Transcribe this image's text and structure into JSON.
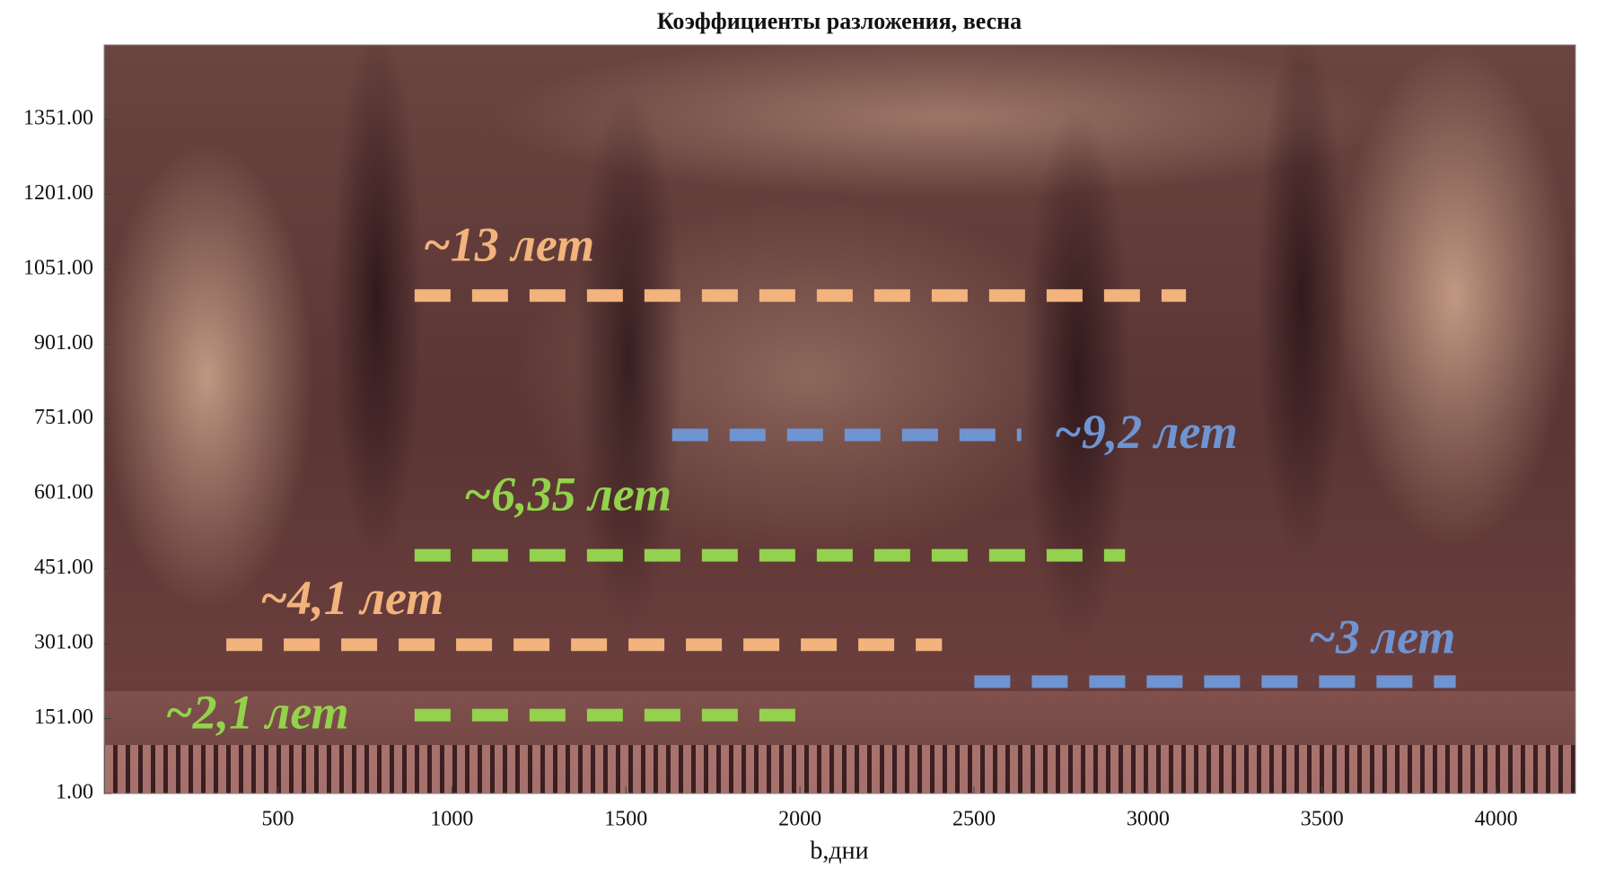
{
  "chart_data": {
    "type": "scalogram",
    "title": "Коэффициенты разложения, весна",
    "xlabel": "b,дни",
    "xlim": [
      1,
      4228
    ],
    "xticks": [
      500,
      1000,
      1500,
      2000,
      2500,
      3000,
      3500,
      4000
    ],
    "ylim": [
      1,
      1500
    ],
    "yticks": [
      {
        "value": 1,
        "label": "1.00"
      },
      {
        "value": 151,
        "label": "151.00"
      },
      {
        "value": 301,
        "label": "301.00"
      },
      {
        "value": 451,
        "label": "451.00"
      },
      {
        "value": 601,
        "label": "601.00"
      },
      {
        "value": 751,
        "label": "751.00"
      },
      {
        "value": 901,
        "label": "901.00"
      },
      {
        "value": 1051,
        "label": "1051.00"
      },
      {
        "value": 1201,
        "label": "1201.00"
      },
      {
        "value": 1351,
        "label": "1351.00"
      }
    ],
    "annotations": [
      {
        "text": "~13 лет",
        "color": "#f2b37c",
        "y": 998,
        "x": [
          893,
          3109
        ]
      },
      {
        "text": "~9,2 лет",
        "color": "#6f94d2",
        "y": 719,
        "x": [
          1633,
          2636
        ]
      },
      {
        "text": "~6,35 лет",
        "color": "#93d24c",
        "y": 478,
        "x": [
          893,
          2934
        ]
      },
      {
        "text": "~4,1 лет",
        "color": "#f2b37c",
        "y": 299,
        "x": [
          352,
          2408
        ]
      },
      {
        "text": "~3 лет",
        "color": "#6f94d2",
        "y": 225,
        "x": [
          2501,
          3884
        ]
      },
      {
        "text": "~2,1 лет",
        "color": "#93d24c",
        "y": 158,
        "x": [
          893,
          1992
        ]
      }
    ]
  }
}
